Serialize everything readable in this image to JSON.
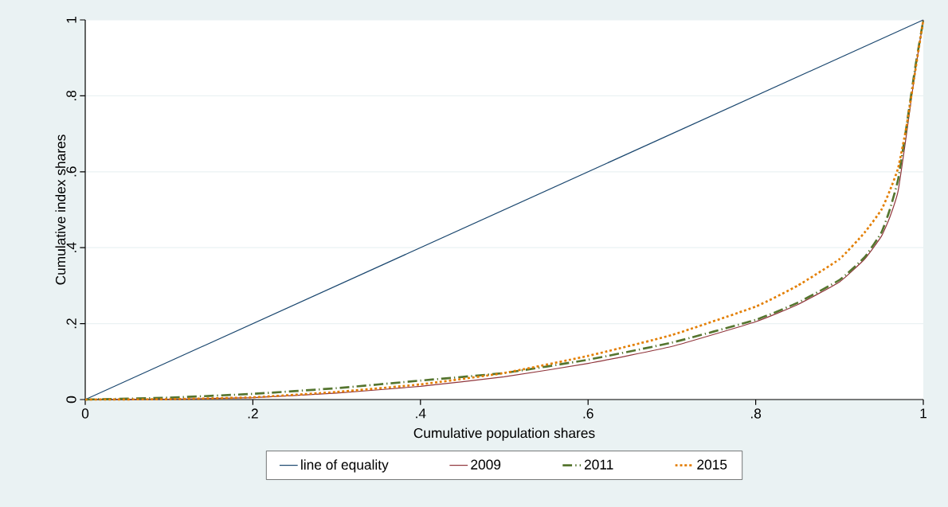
{
  "chart_data": {
    "type": "line",
    "xlabel": "Cumulative population shares",
    "ylabel": "Cumulative index shares",
    "xlim": [
      0,
      1
    ],
    "ylim": [
      0,
      1
    ],
    "xticks": [
      0,
      {
        "value": 0.2,
        "label": ".2"
      },
      {
        "value": 0.4,
        "label": ".4"
      },
      {
        "value": 0.6,
        "label": ".6"
      },
      {
        "value": 0.8,
        "label": ".8"
      },
      1
    ],
    "yticks": [
      0,
      {
        "value": 0.2,
        "label": ".2"
      },
      {
        "value": 0.4,
        "label": ".4"
      },
      {
        "value": 0.6,
        "label": ".6"
      },
      {
        "value": 0.8,
        "label": ".8"
      },
      1
    ],
    "grid": "y",
    "legend": "bottom",
    "series": [
      {
        "name": "line of equality",
        "color": "#1a476f",
        "line_style": "solid",
        "x": [
          0,
          1
        ],
        "values": [
          0,
          1
        ]
      },
      {
        "name": "2009",
        "color": "#90353b",
        "line_style": "solid",
        "x": [
          0,
          0.1,
          0.2,
          0.3,
          0.4,
          0.5,
          0.6,
          0.7,
          0.8,
          0.85,
          0.9,
          0.93,
          0.95,
          0.96,
          0.97,
          0.98,
          0.99,
          1
        ],
        "values": [
          0,
          0.001,
          0.005,
          0.017,
          0.035,
          0.06,
          0.095,
          0.14,
          0.205,
          0.25,
          0.31,
          0.37,
          0.43,
          0.48,
          0.55,
          0.7,
          0.86,
          1
        ]
      },
      {
        "name": "2011",
        "color": "#55752f",
        "line_style": "dashed",
        "x": [
          0,
          0.1,
          0.2,
          0.3,
          0.4,
          0.5,
          0.6,
          0.7,
          0.8,
          0.85,
          0.9,
          0.93,
          0.95,
          0.96,
          0.97,
          0.98,
          0.99,
          1
        ],
        "values": [
          0,
          0.005,
          0.015,
          0.03,
          0.05,
          0.07,
          0.105,
          0.15,
          0.21,
          0.255,
          0.315,
          0.375,
          0.44,
          0.5,
          0.58,
          0.72,
          0.87,
          1
        ]
      },
      {
        "name": "2015",
        "color": "#e37e00",
        "line_style": "dotted",
        "x": [
          0,
          0.1,
          0.2,
          0.3,
          0.4,
          0.5,
          0.6,
          0.7,
          0.8,
          0.85,
          0.9,
          0.93,
          0.95,
          0.96,
          0.97,
          0.98,
          0.99,
          1
        ],
        "values": [
          0,
          0.001,
          0.006,
          0.02,
          0.04,
          0.07,
          0.115,
          0.17,
          0.245,
          0.3,
          0.37,
          0.44,
          0.5,
          0.55,
          0.61,
          0.72,
          0.86,
          1
        ]
      }
    ]
  }
}
